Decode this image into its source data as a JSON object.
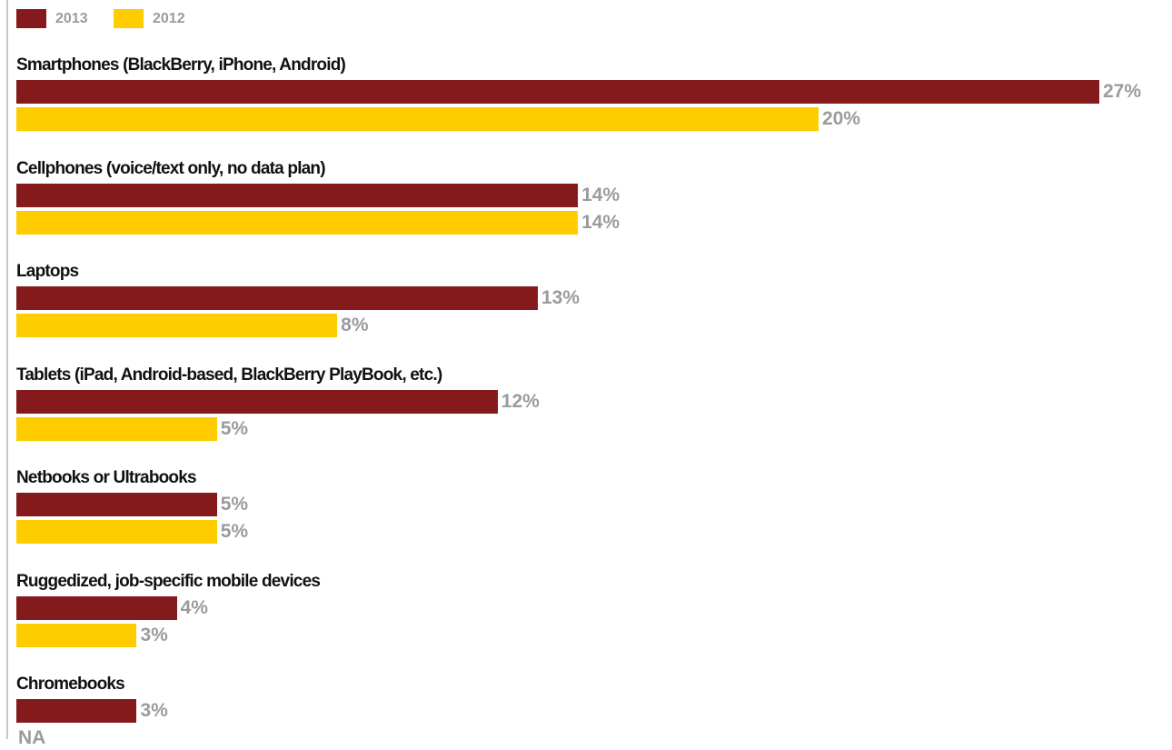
{
  "chart_data": {
    "type": "bar",
    "orientation": "horizontal",
    "legend": "top-left",
    "grid": false,
    "xlim": [
      0,
      27
    ],
    "colors": {
      "2013": "#841a1c",
      "2012": "#ffcc00"
    },
    "series": [
      {
        "name": "2013",
        "values": [
          27,
          14,
          13,
          12,
          5,
          4,
          3
        ],
        "labels": [
          "27%",
          "14%",
          "13%",
          "12%",
          "5%",
          "4%",
          "3%"
        ]
      },
      {
        "name": "2012",
        "values": [
          20,
          14,
          8,
          5,
          5,
          3,
          null
        ],
        "labels": [
          "20%",
          "14%",
          "8%",
          "5%",
          "5%",
          "3%",
          "NA"
        ]
      }
    ],
    "categories": [
      "Smartphones (BlackBerry, iPhone, Android)",
      "Cellphones (voice/text only, no data plan)",
      "Laptops",
      "Tablets (iPad, Android-based, BlackBerry PlayBook, etc.)",
      "Netbooks or Ultrabooks",
      "Ruggedized, job-specific mobile devices",
      "Chromebooks"
    ]
  }
}
